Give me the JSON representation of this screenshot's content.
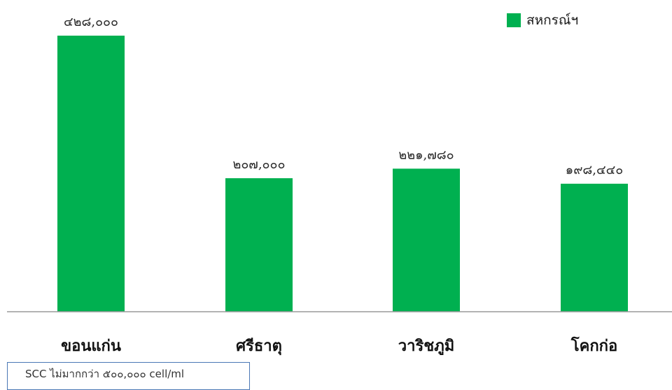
{
  "chart_data": {
    "type": "bar",
    "categories": [
      "ขอนแก่น",
      "ศรีธาตุ",
      "วาริชภูมิ",
      "โคกก่อ"
    ],
    "series": [
      {
        "name": "สหกรณ์ฯ",
        "values": [
          428000,
          207000,
          221780,
          198440
        ],
        "value_labels": [
          "๔๒๘,๐๐๐",
          "๒๐๗,๐๐๐",
          "๒๒๑,๗๘๐",
          "๑๙๘,๔๔๐"
        ],
        "color": "#00b050"
      }
    ],
    "ylim": [
      0,
      428000
    ],
    "grid": false,
    "legend_position": "top-right"
  },
  "legend": {
    "label": "สหกรณ์ฯ",
    "color": "#00b050"
  },
  "note": {
    "text": "SCC ไม่มากกว่า   ๕๐๐,๐๐๐ cell/ml"
  },
  "colors": {
    "bar": "#00b050",
    "axis": "#9a9a9a",
    "note_border": "#4a78b5"
  }
}
